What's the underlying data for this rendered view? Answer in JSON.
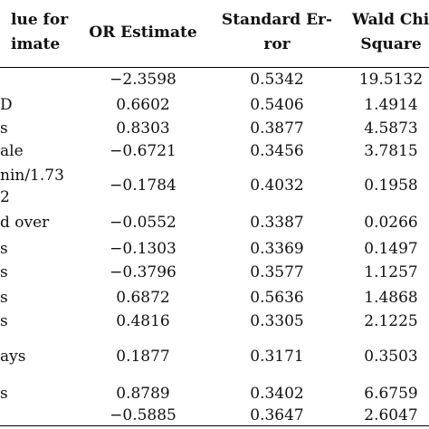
{
  "table": {
    "headers": {
      "col0": [
        "lue for",
        "imate"
      ],
      "col1": "OR Estimate",
      "col2": [
        "Standard Er-",
        "ror"
      ],
      "col3": [
        "Wald Chi",
        "Square"
      ]
    },
    "rows": [
      {
        "label": "",
        "or": "−2.3598",
        "se": "0.5342",
        "wald": "19.5132"
      },
      {
        "label": "D",
        "or": "0.6602",
        "se": "0.5406",
        "wald": "1.4914"
      },
      {
        "label": "s",
        "or": "0.8303",
        "se": "0.3877",
        "wald": "4.5873"
      },
      {
        "label": "ale",
        "or": "−0.6721",
        "se": "0.3456",
        "wald": "3.7815"
      },
      {
        "label": "nin/1.73",
        "label2": "2",
        "or": "−0.1784",
        "se": "0.4032",
        "wald": "0.1958"
      },
      {
        "label": "d over",
        "or": "−0.0552",
        "se": "0.3387",
        "wald": "0.0266"
      },
      {
        "label": "s",
        "or": "−0.1303",
        "se": "0.3369",
        "wald": "0.1497"
      },
      {
        "label": "s",
        "or": "−0.3796",
        "se": "0.3577",
        "wald": "1.1257"
      },
      {
        "label": "s",
        "or": "0.6872",
        "se": "0.5636",
        "wald": "1.4868"
      },
      {
        "label": "s",
        "or": "0.4816",
        "se": "0.3305",
        "wald": "2.1225"
      },
      {
        "label": "ays",
        "or": "0.1877",
        "se": "0.3171",
        "wald": "0.3503"
      },
      {
        "label": "s",
        "or": "0.8789",
        "se": "0.3402",
        "wald": "6.6759"
      },
      {
        "label": "",
        "or": "−0.5885",
        "se": "0.3647",
        "wald": "2.6047"
      }
    ]
  }
}
